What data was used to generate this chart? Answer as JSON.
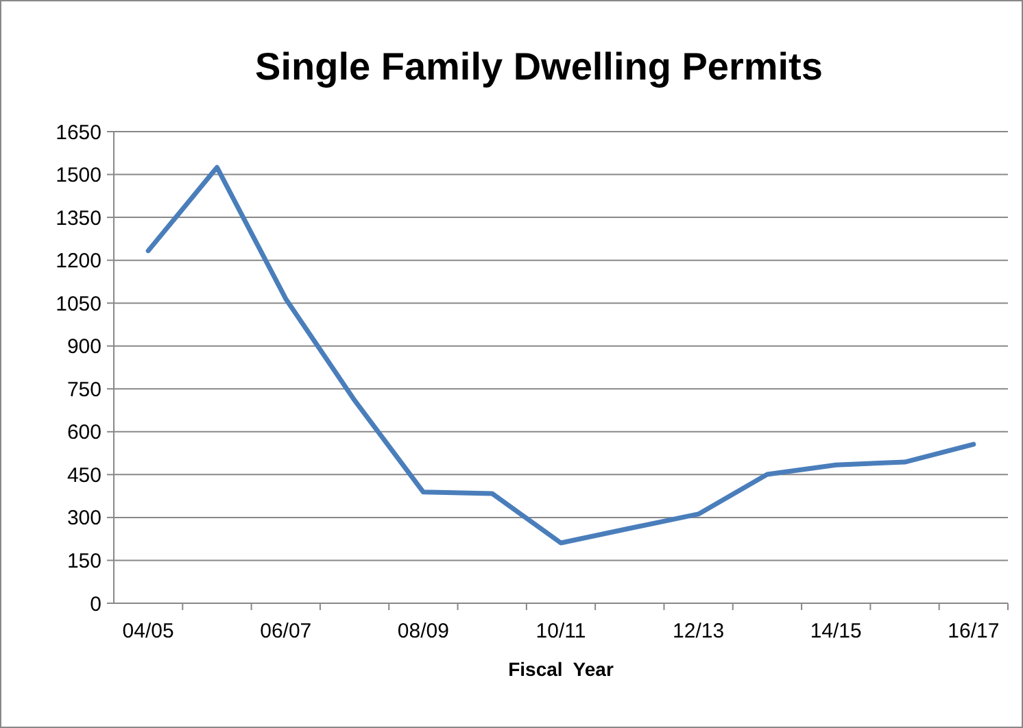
{
  "chart_data": {
    "type": "line",
    "title": "Single Family Dwelling Permits",
    "xlabel": "Fiscal  Year",
    "categories": [
      "04/05",
      null,
      "06/07",
      null,
      "08/09",
      null,
      "10/11",
      null,
      "12/13",
      null,
      "14/15",
      null,
      "16/17"
    ],
    "series": [
      {
        "color": "#4a7ebb",
        "values": [
          1233,
          1525,
          1065,
          710,
          389,
          384,
          211,
          262,
          312,
          451,
          484,
          494,
          556
        ]
      }
    ],
    "ylim": [
      0,
      1650
    ],
    "yticks": [
      0,
      150,
      300,
      450,
      600,
      750,
      900,
      1050,
      1200,
      1350,
      1500,
      1650
    ],
    "grid": "y",
    "marker": "none",
    "line_style": "solid"
  }
}
